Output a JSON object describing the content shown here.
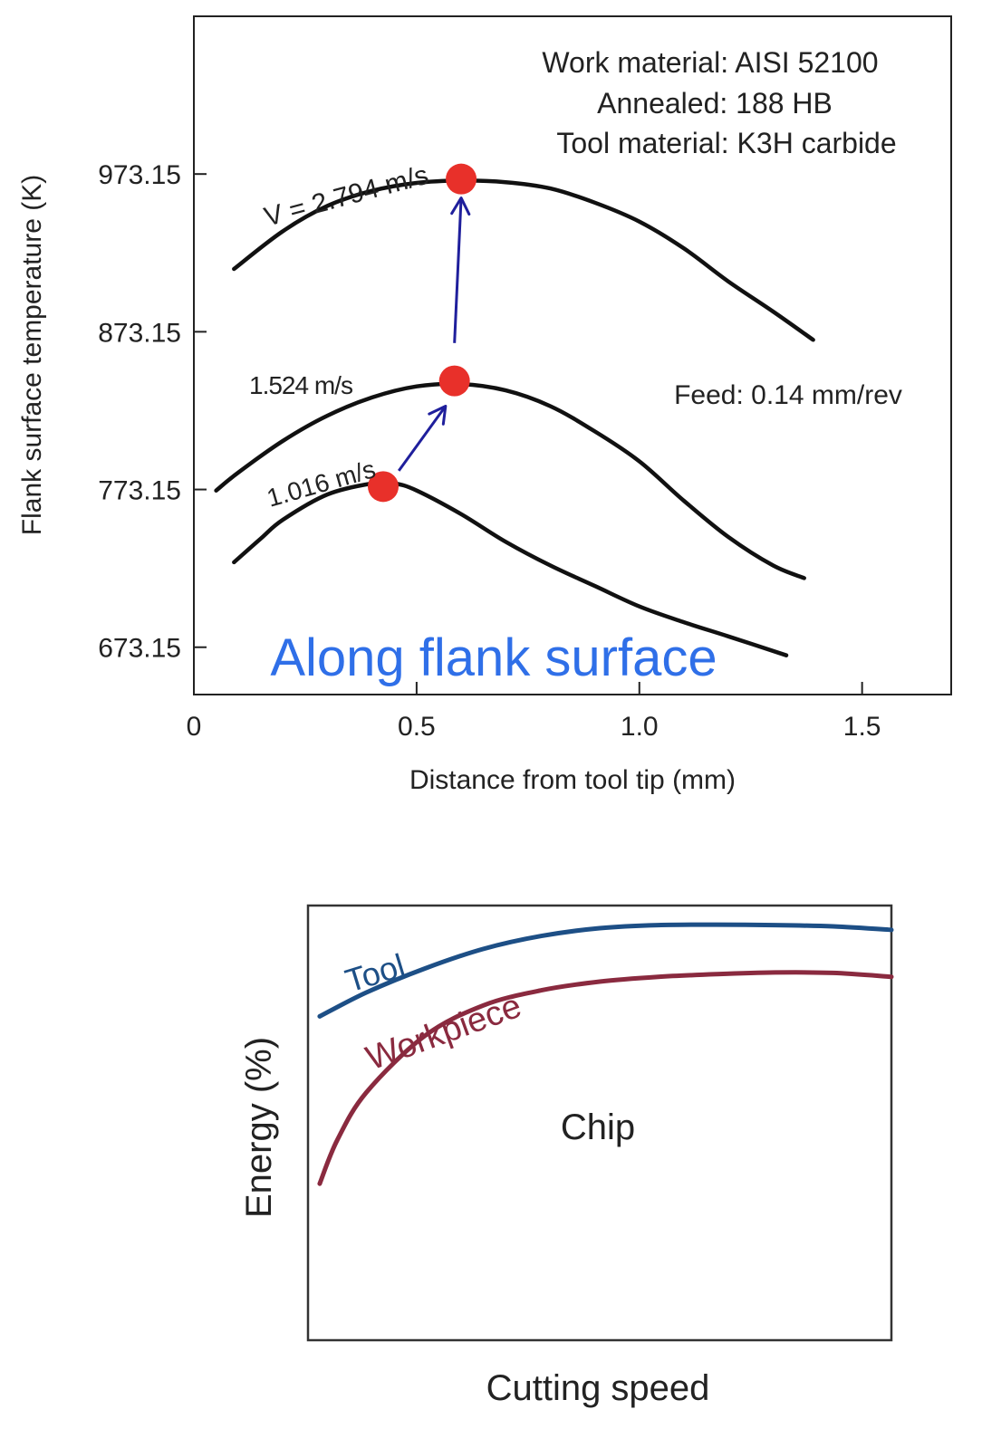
{
  "chart_data": [
    {
      "type": "line",
      "title": "",
      "xlabel": "Distance from tool tip (mm)",
      "ylabel": "Flank surface temperature (K)",
      "xlim": [
        0,
        1.7
      ],
      "ylim": [
        643.15,
        1073.15
      ],
      "x_ticks": [
        {
          "value": 0,
          "label": "0"
        },
        {
          "value": 0.5,
          "label": "0.5"
        },
        {
          "value": 1.0,
          "label": "1.0"
        },
        {
          "value": 1.5,
          "label": "1.5"
        }
      ],
      "y_ticks": [
        {
          "value": 673.15,
          "label": "673.15"
        },
        {
          "value": 773.15,
          "label": "773.15"
        },
        {
          "value": 873.15,
          "label": "873.15"
        },
        {
          "value": 973.15,
          "label": "973.15"
        }
      ],
      "grid": false,
      "series": [
        {
          "name": "V = 2.794 m/s",
          "x": [
            0.09,
            0.2,
            0.3,
            0.4,
            0.5,
            0.6,
            0.7,
            0.8,
            0.9,
            1.0,
            1.1,
            1.2,
            1.3,
            1.39
          ],
          "y": [
            913.0,
            937.0,
            953.0,
            962.5,
            967.5,
            969.0,
            968.0,
            964.0,
            955.0,
            943.0,
            926.0,
            905.0,
            886.0,
            868.0
          ]
        },
        {
          "name": "1.524 m/s",
          "x": [
            0.05,
            0.1,
            0.2,
            0.3,
            0.4,
            0.5,
            0.6,
            0.7,
            0.8,
            0.9,
            1.0,
            1.1,
            1.2,
            1.3,
            1.37
          ],
          "y": [
            772.5,
            784.0,
            804.0,
            820.0,
            831.5,
            838.5,
            840.0,
            836.0,
            826.0,
            810.0,
            791.0,
            766.0,
            743.0,
            725.0,
            717.0
          ]
        },
        {
          "name": "1.016 m/s",
          "x": [
            0.09,
            0.15,
            0.2,
            0.3,
            0.4,
            0.45,
            0.5,
            0.6,
            0.7,
            0.8,
            0.9,
            1.0,
            1.1,
            1.2,
            1.33
          ],
          "y": [
            727.0,
            742.0,
            754.0,
            770.0,
            777.0,
            777.0,
            772.5,
            757.5,
            740.0,
            725.0,
            712.0,
            699.0,
            689.0,
            680.0,
            668.0
          ]
        }
      ],
      "markers": [
        {
          "x": 0.6,
          "y": 970.0
        },
        {
          "x": 0.585,
          "y": 842.0
        },
        {
          "x": 0.425,
          "y": 775.0
        }
      ],
      "arrows": [
        {
          "from": [
            0.46,
            785.0
          ],
          "to": [
            0.565,
            826.0
          ]
        },
        {
          "from": [
            0.585,
            866.0
          ],
          "to": [
            0.6,
            958.0
          ]
        }
      ],
      "labels": {
        "v2794": "V = 2.794 m/s",
        "v1524": "1.524 m/s",
        "v1016": "1.016 m/s"
      },
      "annotations": {
        "work_material": "Work material: AISI 52100",
        "annealed": "Annealed: 188 HB",
        "tool_material": "Tool material: K3H carbide",
        "feed": "Feed: 0.14 mm/rev",
        "along": "Along flank surface"
      },
      "colors": {
        "marker": "#e8302a",
        "arrow": "#1f1f9c",
        "along": "#2f6fe8",
        "curve": "#111111"
      }
    },
    {
      "type": "line",
      "title": "",
      "xlabel": "Cutting speed",
      "ylabel": "Energy (%)",
      "xlim": [
        0,
        100
      ],
      "ylim": [
        0,
        100
      ],
      "grid": false,
      "series": [
        {
          "name": "Tool",
          "x": [
            2,
            10,
            20,
            30,
            40,
            50,
            60,
            70,
            80,
            90,
            100
          ],
          "y": [
            74.5,
            80.0,
            85.5,
            90.0,
            93.0,
            94.8,
            95.5,
            95.6,
            95.5,
            95.2,
            94.4
          ]
        },
        {
          "name": "Workpiece",
          "x": [
            2,
            5,
            10,
            20,
            30,
            40,
            50,
            60,
            70,
            80,
            90,
            100
          ],
          "y": [
            36.0,
            46.0,
            57.0,
            70.0,
            77.0,
            80.5,
            82.5,
            83.6,
            84.2,
            84.6,
            84.5,
            83.6
          ]
        }
      ],
      "labels": {
        "tool": "Tool",
        "workpiece": "Workpiece",
        "chip": "Chip"
      },
      "colors": {
        "tool": "#1d4f86",
        "workpiece": "#8a2a3f",
        "frame": "#333333"
      }
    }
  ]
}
